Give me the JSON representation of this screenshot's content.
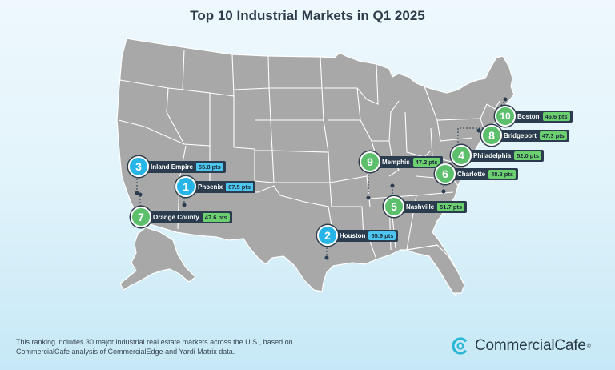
{
  "title": "Top 10 Industrial Markets in Q1 2025",
  "markets": [
    {
      "rank": "1",
      "name": "Phoenix",
      "score": "67.5 pts",
      "color": "blue"
    },
    {
      "rank": "2",
      "name": "Houston",
      "score": "55.9 pts",
      "color": "blue"
    },
    {
      "rank": "3",
      "name": "Inland Empire",
      "score": "55.8 pts",
      "color": "blue"
    },
    {
      "rank": "4",
      "name": "Philadelphia",
      "score": "52.0 pts",
      "color": "green"
    },
    {
      "rank": "5",
      "name": "Nashville",
      "score": "51.7 pts",
      "color": "green"
    },
    {
      "rank": "6",
      "name": "Charlotte",
      "score": "48.8 pts",
      "color": "green"
    },
    {
      "rank": "7",
      "name": "Orange County",
      "score": "47.6 pts",
      "color": "green"
    },
    {
      "rank": "8",
      "name": "Bridgeport",
      "score": "47.3 pts",
      "color": "green"
    },
    {
      "rank": "9",
      "name": "Memphis",
      "score": "47.2 pts",
      "color": "green"
    },
    {
      "rank": "10",
      "name": "Boston",
      "score": "46.6 pts",
      "color": "green"
    }
  ],
  "footnote": {
    "line1": "This ranking includes 30 major industrial real estate markets across the U.S., based on",
    "line2": "CommercialCafe analysis of CommercialEdge and Yardi Matrix data."
  },
  "logo": {
    "text": "CommercialCafe",
    "mark": "®"
  },
  "colors": {
    "map_fill": "#a8a8a8",
    "state_border": "#ffffff",
    "label_bg": "#2a3c4d",
    "green": "#5bbf6b",
    "blue": "#27b5e8",
    "logo_accent": "#2bb6d6"
  }
}
